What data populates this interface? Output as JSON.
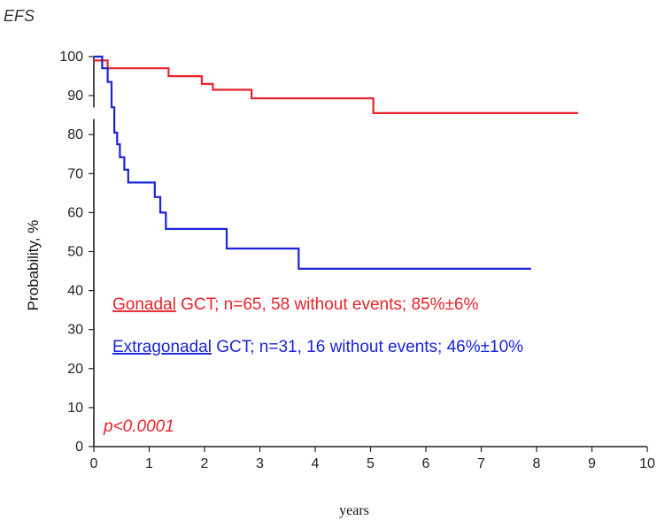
{
  "chart_data": {
    "type": "line",
    "title": "EFS",
    "xlabel": "years",
    "ylabel": "Probability, %",
    "xlim": [
      0,
      10
    ],
    "ylim": [
      0,
      100
    ],
    "y_axis_break_between": [
      84,
      87
    ],
    "xticks": [
      "0",
      "1",
      "2",
      "3",
      "4",
      "5",
      "6",
      "7",
      "8",
      "9",
      "10"
    ],
    "yticks": [
      "0",
      "10",
      "20",
      "30",
      "40",
      "50",
      "60",
      "70",
      "80",
      "90",
      "100"
    ],
    "series": [
      {
        "name": "Gonadal GCT",
        "color": "#e8232a",
        "legend_prefix": "Gonadal",
        "legend_suffix": " GCT; n=65, 58 without events; 85%±6%",
        "steps": [
          [
            0,
            99
          ],
          [
            0.25,
            99
          ],
          [
            0.25,
            97
          ],
          [
            1.35,
            97
          ],
          [
            1.35,
            95
          ],
          [
            1.95,
            95
          ],
          [
            1.95,
            93
          ],
          [
            2.15,
            93
          ],
          [
            2.15,
            91.5
          ],
          [
            2.85,
            91.5
          ],
          [
            2.85,
            89.3
          ],
          [
            5.05,
            89.3
          ],
          [
            5.05,
            85.5
          ],
          [
            8.75,
            85.5
          ]
        ]
      },
      {
        "name": "Extragonadal GCT",
        "color": "#1a23d6",
        "legend_prefix": "Extragonadal",
        "legend_suffix": " GCT; n=31, 16 without events; 46%±10%",
        "steps": [
          [
            0,
            100
          ],
          [
            0.15,
            100
          ],
          [
            0.15,
            97
          ],
          [
            0.25,
            97
          ],
          [
            0.25,
            93.5
          ],
          [
            0.32,
            93.5
          ],
          [
            0.32,
            87
          ],
          [
            0.37,
            87
          ],
          [
            0.37,
            80.5
          ],
          [
            0.42,
            80.5
          ],
          [
            0.42,
            77.5
          ],
          [
            0.47,
            77.5
          ],
          [
            0.47,
            74.2
          ],
          [
            0.55,
            74.2
          ],
          [
            0.55,
            71
          ],
          [
            0.62,
            71
          ],
          [
            0.62,
            67.7
          ],
          [
            1.1,
            67.7
          ],
          [
            1.1,
            64
          ],
          [
            1.2,
            64
          ],
          [
            1.2,
            60
          ],
          [
            1.3,
            60
          ],
          [
            1.3,
            55.8
          ],
          [
            2.4,
            55.8
          ],
          [
            2.4,
            50.8
          ],
          [
            3.7,
            50.8
          ],
          [
            3.7,
            45.6
          ],
          [
            7.9,
            45.6
          ]
        ]
      }
    ],
    "annotations": [
      {
        "text": "p<0.0001",
        "color": "#e8232a"
      }
    ]
  }
}
